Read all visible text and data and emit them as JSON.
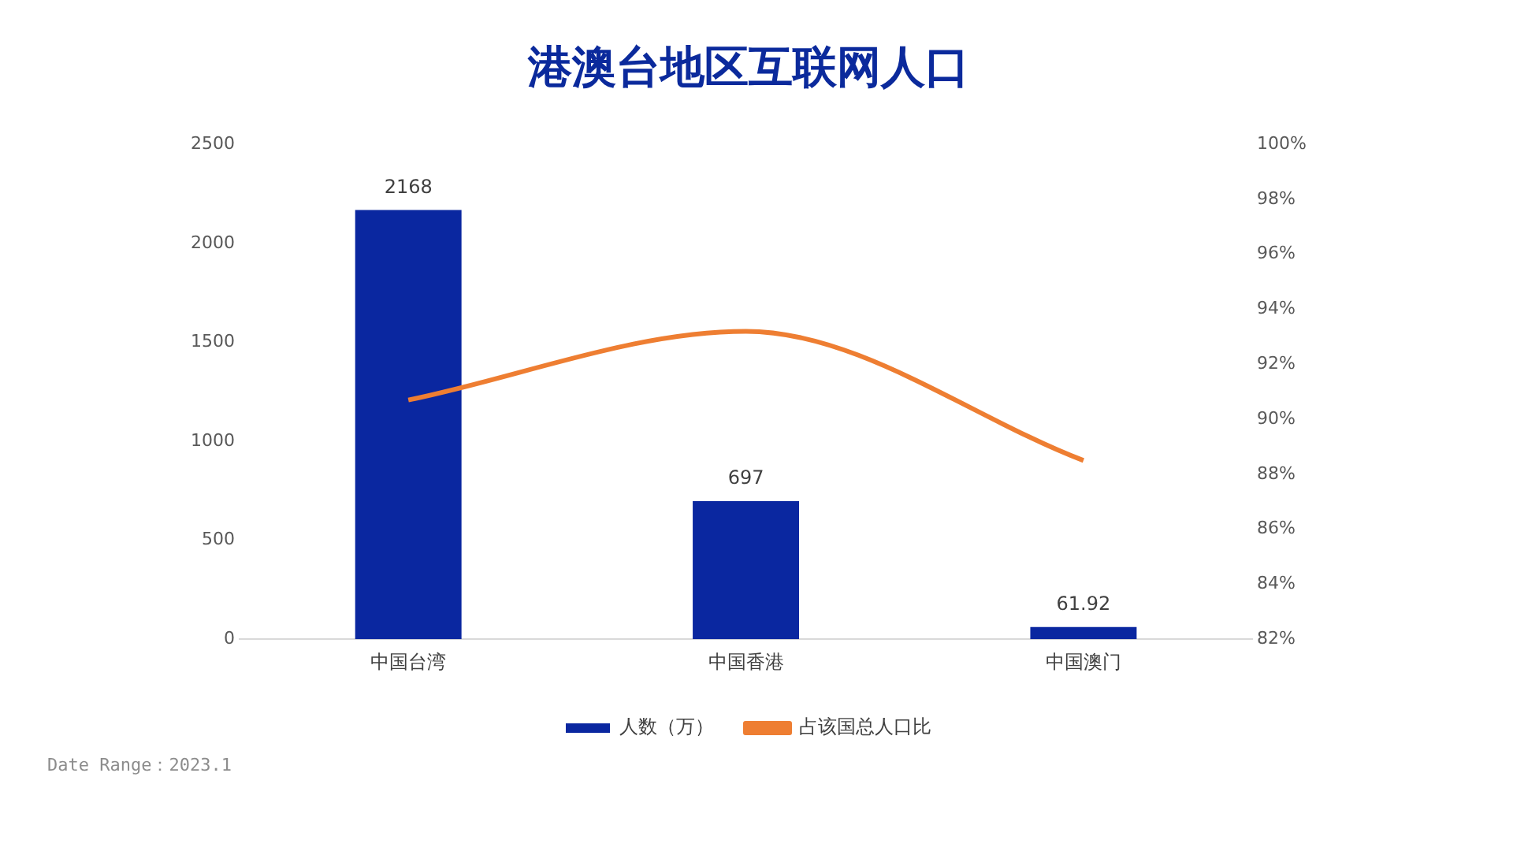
{
  "chart_data": {
    "type": "bar",
    "title": "港澳台地区互联网人口",
    "categories": [
      "中国台湾",
      "中国香港",
      "中国澳门"
    ],
    "series": [
      {
        "name": "人数（万）",
        "color": "#0a27a0",
        "values": [
          2168,
          697,
          61.92
        ],
        "value_labels": [
          "2168",
          "697",
          "61.92"
        ]
      },
      {
        "name": "占该国总人口比",
        "type": "line",
        "axis": "y2",
        "color": "#ee7e32",
        "values": [
          90.7,
          93.2,
          88.5
        ],
        "marker": "none"
      }
    ],
    "ylim": [
      0,
      2500
    ],
    "yticks": [
      0,
      500,
      1000,
      1500,
      2000,
      2500
    ],
    "y2lim": [
      82,
      100
    ],
    "y2ticks": [
      {
        "value": 82,
        "label": "82%"
      },
      {
        "value": 84,
        "label": "84%"
      },
      {
        "value": 86,
        "label": "86%"
      },
      {
        "value": 88,
        "label": "88%"
      },
      {
        "value": 90,
        "label": "90%"
      },
      {
        "value": 92,
        "label": "92%"
      },
      {
        "value": 94,
        "label": "94%"
      },
      {
        "value": 96,
        "label": "96%"
      },
      {
        "value": 98,
        "label": "98%"
      },
      {
        "value": 100,
        "label": "100%"
      }
    ],
    "grid": false,
    "legend": "bottom",
    "annotations": [
      "Date Range：2023.1"
    ]
  }
}
